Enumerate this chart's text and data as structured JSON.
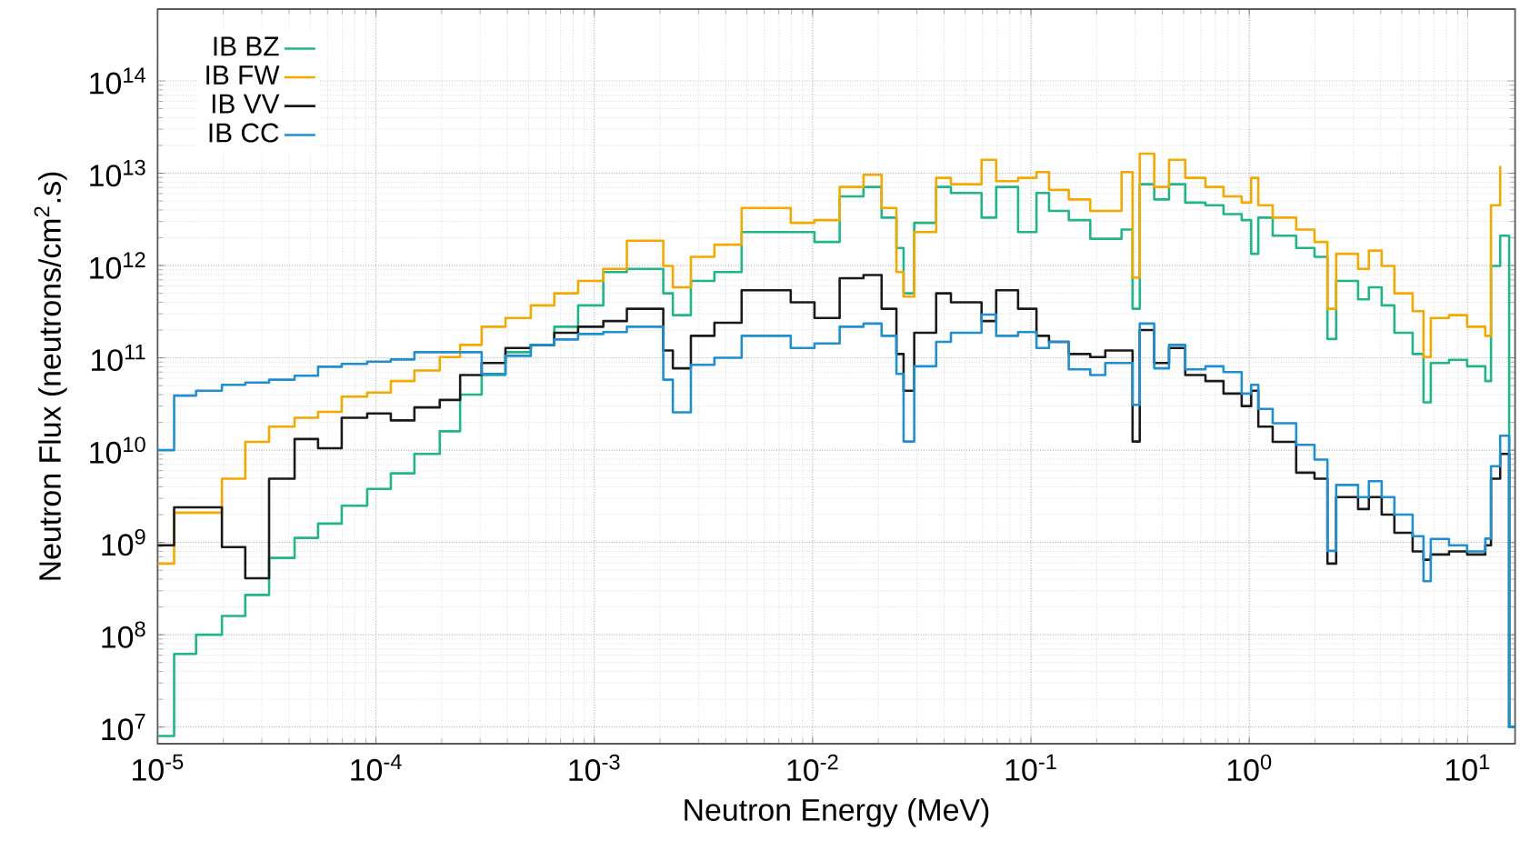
{
  "chart_data": {
    "type": "step",
    "xlabel": "Neutron Energy (MeV)",
    "ylabel": "Neutron Flux (neutrons/cm$^{2}$.s)",
    "log": "xy",
    "grid": true,
    "legend": "top left",
    "xlim": [
      1e-05,
      16.5
    ],
    "ylim": [
      6600000.0,
      600000000000000.0
    ],
    "xticks": [
      {
        "value": 1e-05,
        "label": "10$^{-5}$"
      },
      {
        "value": 0.0001,
        "label": "10$^{-4}$"
      },
      {
        "value": 0.001,
        "label": "10$^{-3}$"
      },
      {
        "value": 0.01,
        "label": "10$^{-2}$"
      },
      {
        "value": 0.1,
        "label": "10$^{-1}$"
      },
      {
        "value": 1,
        "label": "10$^{0}$"
      },
      {
        "value": 10,
        "label": "10$^{1}$"
      }
    ],
    "yticks": [
      {
        "value": 10000000.0,
        "label": "10$^{7}$"
      },
      {
        "value": 100000000.0,
        "label": "10$^{8}$"
      },
      {
        "value": 1000000000.0,
        "label": "10$^{9}$"
      },
      {
        "value": 10000000000.0,
        "label": "10$^{10}$"
      },
      {
        "value": 100000000000.0,
        "label": "10$^{11}$"
      },
      {
        "value": 1000000000000.0,
        "label": "10$^{12}$"
      },
      {
        "value": 10000000000000.0,
        "label": "10$^{13}$"
      },
      {
        "value": 100000000000000.0,
        "label": "10$^{14}$"
      }
    ],
    "x": [
      1e-05,
      1.19e-05,
      1.5e-05,
      1.97e-05,
      2.52e-05,
      3.24e-05,
      4.24e-05,
      5.43e-05,
      6.97e-05,
      9.12e-05,
      0.000117,
      0.00015,
      0.000196,
      0.000243,
      0.000305,
      0.000392,
      0.000512,
      0.000656,
      0.000843,
      0.0011,
      0.00141,
      0.00182,
      0.00207,
      0.00229,
      0.00277,
      0.00355,
      0.00473,
      0.00596,
      0.00794,
      0.0102,
      0.0133,
      0.0171,
      0.0207,
      0.0242,
      0.0261,
      0.0292,
      0.0368,
      0.043,
      0.0594,
      0.0693,
      0.0873,
      0.106,
      0.121,
      0.149,
      0.187,
      0.219,
      0.26,
      0.292,
      0.315,
      0.367,
      0.429,
      0.509,
      0.63,
      0.762,
      0.923,
      1.02,
      1.1,
      1.28,
      1.64,
      1.99,
      2.28,
      2.5,
      3.15,
      3.53,
      4.04,
      4.62,
      5.6,
      6.28,
      6.78,
      8.22,
      9.95,
      12.05,
      12.8,
      14.1,
      15.5
    ],
    "series": [
      {
        "name": "IB BZ",
        "color": "#21b58a",
        "values": [
          8000000.0,
          62000000.0,
          100000000.0,
          160000000.0,
          270000000.0,
          680000000.0,
          1120000000.0,
          1600000000.0,
          2500000000.0,
          3800000000.0,
          5600000000.0,
          9100000000.0,
          16000000000.0,
          40000000000.0,
          65000000000.0,
          115000000000.0,
          138000000000.0,
          217000000000.0,
          370000000000.0,
          850000000000.0,
          920000000000.0,
          920000000000.0,
          500000000000.0,
          290000000000.0,
          680000000000.0,
          850000000000.0,
          2300000000000.0,
          2300000000000.0,
          2300000000000.0,
          1800000000000.0,
          5600000000000.0,
          7100000000000.0,
          3300000000000.0,
          1550000000000.0,
          500000000000.0,
          2900000000000.0,
          7100000000000.0,
          6100000000000.0,
          3300000000000.0,
          7100000000000.0,
          2300000000000.0,
          6100000000000.0,
          3900000000000.0,
          3100000000000.0,
          1950000000000.0,
          1950000000000.0,
          2450000000000.0,
          340000000000.0,
          7600000000000.0,
          5200000000000.0,
          7600000000000.0,
          4800000000000.0,
          4500000000000.0,
          3600000000000.0,
          3100000000000.0,
          1340000000000.0,
          3300000000000.0,
          2100000000000.0,
          1550000000000.0,
          1240000000000.0,
          160000000000.0,
          680000000000.0,
          430000000000.0,
          580000000000.0,
          370000000000.0,
          187000000000.0,
          110000000000.0,
          33000000000.0,
          88000000000.0,
          95000000000.0,
          81000000000.0,
          56000000000.0,
          990000000000.0,
          2100000000000.0,
          10000000.0
        ]
      },
      {
        "name": "IB FW",
        "color": "#f4a900",
        "values": [
          590000000.0,
          2100000000.0,
          2100000000.0,
          4900000000.0,
          12300000000.0,
          18000000000.0,
          22400000000.0,
          26000000000.0,
          38000000000.0,
          42000000000.0,
          56000000000.0,
          73000000000.0,
          102000000000.0,
          138000000000.0,
          217000000000.0,
          270000000000.0,
          370000000000.0,
          500000000000.0,
          680000000000.0,
          920000000000.0,
          1860000000000.0,
          1860000000000.0,
          990000000000.0,
          580000000000.0,
          1240000000000.0,
          1680000000000.0,
          4200000000000.0,
          4200000000000.0,
          2900000000000.0,
          3100000000000.0,
          7100000000000.0,
          9600000000000.0,
          4200000000000.0,
          850000000000.0,
          460000000000.0,
          2300000000000.0,
          8900000000000.0,
          7600000000000.0,
          14000000000000.0,
          8200000000000.0,
          8900000000000.0,
          10300000000000.0,
          6600000000000.0,
          5200000000000.0,
          3900000000000.0,
          3900000000000.0,
          10300000000000.0,
          740000000000.0,
          16300000000000.0,
          7100000000000.0,
          14000000000000.0,
          8900000000000.0,
          7100000000000.0,
          5600000000000.0,
          4800000000000.0,
          8900000000000.0,
          4500000000000.0,
          3300000000000.0,
          2450000000000.0,
          1800000000000.0,
          340000000000.0,
          1340000000000.0,
          920000000000.0,
          1450000000000.0,
          990000000000.0,
          500000000000.0,
          320000000000.0,
          102000000000.0,
          270000000000.0,
          290000000000.0,
          217000000000.0,
          173000000000.0,
          4500000000000.0,
          12000000000000.0,
          null
        ]
      },
      {
        "name": "IB VV",
        "color": "#1a1a1a",
        "values": [
          930000000.0,
          2400000000.0,
          2400000000.0,
          890000000.0,
          410000000.0,
          4900000000.0,
          13200000000.0,
          10500000000.0,
          22400000000.0,
          25000000000.0,
          21000000000.0,
          29000000000.0,
          35000000000.0,
          65000000000.0,
          88000000000.0,
          128000000000.0,
          138000000000.0,
          187000000000.0,
          217000000000.0,
          250000000000.0,
          340000000000.0,
          340000000000.0,
          120000000000.0,
          77000000000.0,
          173000000000.0,
          240000000000.0,
          540000000000.0,
          540000000000.0,
          400000000000.0,
          270000000000.0,
          730000000000.0,
          790000000000.0,
          340000000000.0,
          110000000000.0,
          44000000000.0,
          187000000000.0,
          500000000000.0,
          400000000000.0,
          250000000000.0,
          540000000000.0,
          340000000000.0,
          173000000000.0,
          149000000000.0,
          110000000000.0,
          102000000000.0,
          120000000000.0,
          120000000000.0,
          12400000000.0,
          200000000000.0,
          88000000000.0,
          128000000000.0,
          65000000000.0,
          56000000000.0,
          41000000000.0,
          30000000000.0,
          44000000000.0,
          18000000000.0,
          12300000000.0,
          5700000000.0,
          4900000000.0,
          590000000.0,
          3100000000.0,
          2300000000.0,
          3100000000.0,
          2000000000.0,
          1270000000.0,
          800000000.0,
          650000000.0,
          740000000.0,
          800000000.0,
          740000000.0,
          930000000.0,
          4900000000.0,
          9100000000.0,
          10000000.0
        ]
      },
      {
        "name": "IB CC",
        "color": "#1f8fcf",
        "values": [
          10000000000.0,
          39000000000.0,
          44000000000.0,
          51000000000.0,
          54000000000.0,
          58000000000.0,
          64000000000.0,
          80000000000.0,
          86000000000.0,
          91000000000.0,
          96000000000.0,
          115000000000.0,
          115000000000.0,
          115000000000.0,
          67000000000.0,
          105000000000.0,
          138000000000.0,
          158000000000.0,
          181000000000.0,
          190000000000.0,
          217000000000.0,
          217000000000.0,
          58000000000.0,
          25700000000.0,
          84000000000.0,
          100000000000.0,
          173000000000.0,
          173000000000.0,
          128000000000.0,
          143000000000.0,
          217000000000.0,
          235000000000.0,
          173000000000.0,
          67000000000.0,
          12400000000.0,
          81000000000.0,
          149000000000.0,
          187000000000.0,
          294000000000.0,
          173000000000.0,
          190000000000.0,
          128000000000.0,
          149000000000.0,
          75000000000.0,
          65000000000.0,
          88000000000.0,
          88000000000.0,
          31000000000.0,
          235000000000.0,
          77000000000.0,
          138000000000.0,
          75000000000.0,
          81000000000.0,
          70000000000.0,
          41000000000.0,
          51000000000.0,
          28000000000.0,
          19600000000.0,
          11400000000.0,
          7900000000.0,
          810000000.0,
          4200000000.0,
          3100000000.0,
          4600000000.0,
          3100000000.0,
          2000000000.0,
          1170000000.0,
          380000000.0,
          1090000000.0,
          930000000.0,
          800000000.0,
          1100000000.0,
          6700000000.0,
          14300000000.0,
          10000000.0
        ]
      }
    ]
  }
}
